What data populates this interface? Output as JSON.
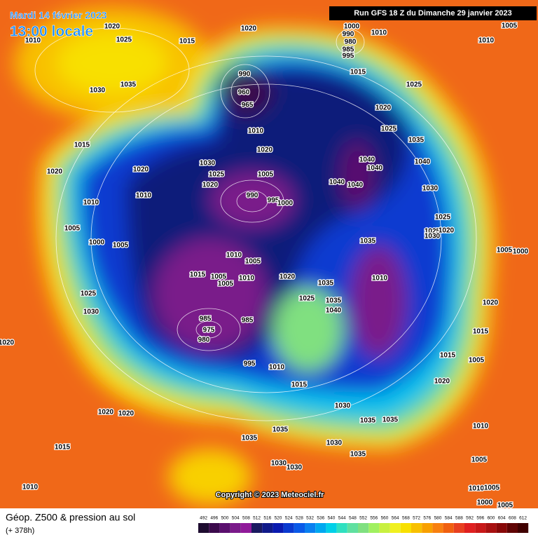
{
  "header": {
    "date": "Mardi 14 février 2023",
    "time": "13:00 locale",
    "run": "Run GFS 18 Z du Dimanche 29 janvier 2023"
  },
  "map": {
    "copyright": "Copyright © 2023 Meteociel.fr",
    "pressure_labels": [
      1010,
      1020,
      1025,
      1020,
      1015,
      1000,
      990,
      1010,
      980,
      985,
      995,
      1005,
      1010,
      1030,
      1035,
      990,
      960,
      965,
      1015,
      1025,
      1020,
      1025,
      1010,
      1035,
      1015,
      1020,
      1030,
      1040,
      1040,
      1040,
      1020,
      1020,
      1025,
      1005,
      1020,
      1040,
      1040,
      1030,
      1010,
      990,
      995,
      1000,
      1010,
      1025,
      1005,
      1025,
      1020,
      1030,
      1000,
      1005,
      1035,
      1005,
      1000,
      1010,
      1005,
      1015,
      1005,
      1005,
      1010,
      1020,
      1010,
      1035,
      1025,
      1025,
      1035,
      1020,
      1030,
      1040,
      985,
      985,
      975,
      980,
      1015,
      1020,
      1015,
      995,
      1010,
      1005,
      1015,
      1020,
      1030,
      1020,
      1020,
      1035,
      1035,
      1035,
      1010,
      1015,
      1035,
      1030,
      1035,
      1005,
      1030,
      1030,
      1010,
      1010,
      1005,
      1000,
      1005
    ]
  },
  "legend": {
    "title": "Géop. Z500 & pression au sol",
    "forecast": "(+ 378h)",
    "scale": [
      492,
      496,
      500,
      504,
      508,
      512,
      516,
      520,
      524,
      528,
      532,
      536,
      540,
      544,
      548,
      552,
      556,
      560,
      564,
      568,
      572,
      576,
      580,
      584,
      588,
      592,
      596,
      600,
      604,
      608,
      612
    ],
    "colors": [
      "#1e0c30",
      "#3b0a4c",
      "#5a0f6e",
      "#7a1a8a",
      "#901a9a",
      "#1a1a60",
      "#101a8a",
      "#0a1ab0",
      "#0a3ad0",
      "#0a5ae8",
      "#0a80f0",
      "#00a8f0",
      "#00d0e8",
      "#30e0c0",
      "#60e0a0",
      "#80e080",
      "#a0f060",
      "#c8f040",
      "#f0f020",
      "#f8e000",
      "#f8c000",
      "#f8a000",
      "#f88010",
      "#f06010",
      "#e84020",
      "#e02020",
      "#c81818",
      "#a81010",
      "#880808",
      "#600404",
      "#400000"
    ]
  }
}
